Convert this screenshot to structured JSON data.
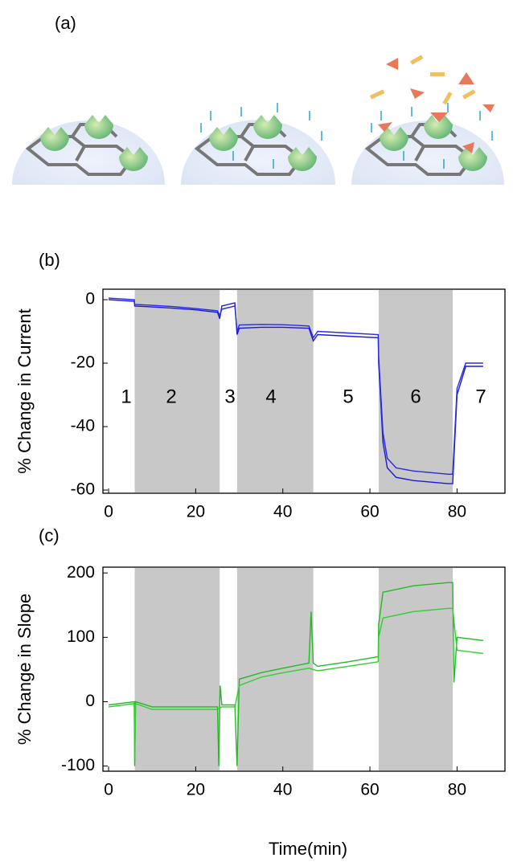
{
  "panel_labels": [
    "(a)",
    "(b)",
    "(c)"
  ],
  "x_label": "Time(min)",
  "chart_data": [
    {
      "type": "line",
      "y_label": "% Change in Current",
      "xlim": [
        -1.3,
        91
      ],
      "xticks": [
        0,
        20,
        40,
        60,
        80
      ],
      "ylim": [
        -61,
        3.3
      ],
      "yticks": [
        0,
        -20,
        -40,
        -60
      ],
      "shaded_regions": [
        [
          6,
          25.5
        ],
        [
          29.5,
          47
        ],
        [
          62,
          79
        ]
      ],
      "shade_color": "#c8c8c8",
      "annotations": [
        "1",
        "2",
        "3",
        "4",
        "5",
        "6",
        "7"
      ],
      "series": [
        {
          "color": "#1a1ad8",
          "x": [
            0,
            5.9,
            6,
            10,
            15,
            20,
            25,
            25.5,
            26,
            29,
            29.5,
            30,
            35,
            40,
            46,
            47,
            48,
            55,
            61.9,
            62,
            63,
            64,
            66,
            70,
            78,
            79,
            80,
            82,
            86
          ],
          "values": [
            0,
            -0.5,
            -2,
            -2.3,
            -2.7,
            -3.2,
            -4,
            -6,
            -2,
            -1,
            -11,
            -9,
            -8.7,
            -8.7,
            -9,
            -13,
            -11,
            -11.5,
            -12,
            -20,
            -45,
            -53,
            -56,
            -57,
            -58,
            -58,
            -30,
            -21,
            -21
          ]
        },
        {
          "color": "#2a2ae0",
          "x": [
            0,
            5.9,
            6,
            10,
            15,
            20,
            25,
            25.5,
            26,
            29,
            29.5,
            30,
            35,
            40,
            46,
            47,
            48,
            55,
            61.9,
            62,
            63,
            64,
            66,
            70,
            78,
            79,
            80,
            82,
            86
          ],
          "values": [
            0.5,
            0,
            -1.5,
            -1.8,
            -2.2,
            -2.8,
            -3.5,
            -5,
            -3,
            -2,
            -10,
            -8,
            -7.8,
            -7.9,
            -8.3,
            -12,
            -10,
            -10.5,
            -11,
            -18,
            -42,
            -50,
            -53,
            -54,
            -55,
            -55,
            -28,
            -20,
            -20
          ]
        }
      ]
    },
    {
      "type": "line",
      "y_label": "% Change in Slope",
      "xlim": [
        -1.3,
        91
      ],
      "xticks": [
        0,
        20,
        40,
        60,
        80
      ],
      "ylim": [
        -108,
        209
      ],
      "yticks": [
        200,
        100,
        0,
        -100
      ],
      "shaded_regions": [
        [
          6,
          25.5
        ],
        [
          29.5,
          47
        ],
        [
          62,
          79
        ]
      ],
      "shade_color": "#c8c8c8",
      "series": [
        {
          "color": "#22bb22",
          "x": [
            0,
            5.9,
            6,
            6.2,
            10,
            20,
            25,
            25.3,
            25.6,
            26,
            29,
            29.5,
            30,
            35,
            40,
            46,
            46.5,
            47,
            48,
            55,
            61.9,
            62,
            63,
            70,
            78,
            79,
            79.3,
            80,
            86
          ],
          "values": [
            -5,
            0,
            -100,
            0,
            -8,
            -8,
            -8,
            -100,
            25,
            -5,
            -5,
            -100,
            35,
            45,
            52,
            60,
            140,
            60,
            55,
            62,
            70,
            120,
            170,
            180,
            185,
            185,
            30,
            100,
            95
          ]
        },
        {
          "color": "#33cc33",
          "x": [
            0,
            5.9,
            6,
            6.2,
            10,
            20,
            25,
            26,
            29,
            30,
            35,
            40,
            46,
            48,
            55,
            61.9,
            62,
            63,
            70,
            78,
            79,
            80,
            86
          ],
          "values": [
            -8,
            -3,
            -90,
            -3,
            -12,
            -12,
            -12,
            -8,
            -8,
            25,
            38,
            45,
            52,
            48,
            55,
            62,
            100,
            130,
            140,
            145,
            145,
            80,
            75
          ]
        }
      ]
    }
  ]
}
